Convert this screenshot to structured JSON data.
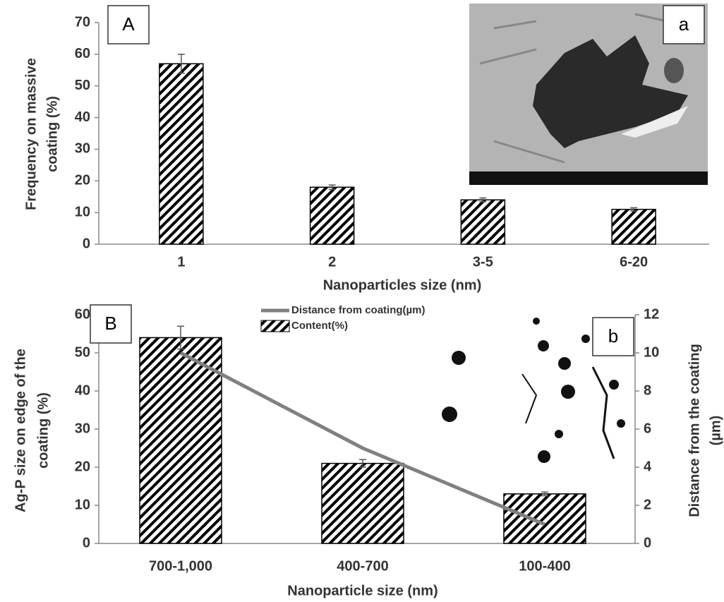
{
  "chart_data": [
    {
      "type": "bar",
      "panel_label": "A",
      "inset_label": "a",
      "xlabel": "Nanoparticles size (nm)",
      "ylabel": [
        "Frequency on massive",
        "coating (%)"
      ],
      "categories": [
        "1",
        "2",
        "3-5",
        "6-20"
      ],
      "values": [
        57,
        18,
        14,
        11
      ],
      "errors": [
        3,
        0.7,
        0.6,
        0.5
      ],
      "color": "#000000",
      "hatch": true,
      "ylim": [
        0,
        70
      ],
      "yticks": [
        0,
        10,
        20,
        30,
        40,
        50,
        60,
        70
      ]
    },
    {
      "type": "bar_line",
      "panel_label": "B",
      "inset_label": "b",
      "xlabel": "Nanoparticle size (nm)",
      "ylabel": [
        "Ag-P size on edge of the",
        "coating (%)"
      ],
      "y2label": [
        "Distance from the coating",
        "(µm)"
      ],
      "categories": [
        "700-1,000",
        "400-700",
        "100-400"
      ],
      "series": [
        {
          "name": "Distance from coating(µm)",
          "type": "line",
          "axis": "y2",
          "color": "#808080",
          "values": [
            10,
            5,
            1
          ]
        },
        {
          "name": "Content(%)",
          "type": "bar",
          "color": "#000000",
          "hatch": true,
          "values": [
            54,
            21,
            13
          ],
          "errors": [
            3,
            1,
            0.5
          ]
        }
      ],
      "legend": "top",
      "ylim": [
        0,
        60
      ],
      "yticks": [
        0,
        10,
        20,
        30,
        40,
        50,
        60
      ],
      "y2lim": [
        0,
        12
      ],
      "y2ticks": [
        0,
        2,
        4,
        6,
        8,
        10,
        12
      ]
    }
  ]
}
